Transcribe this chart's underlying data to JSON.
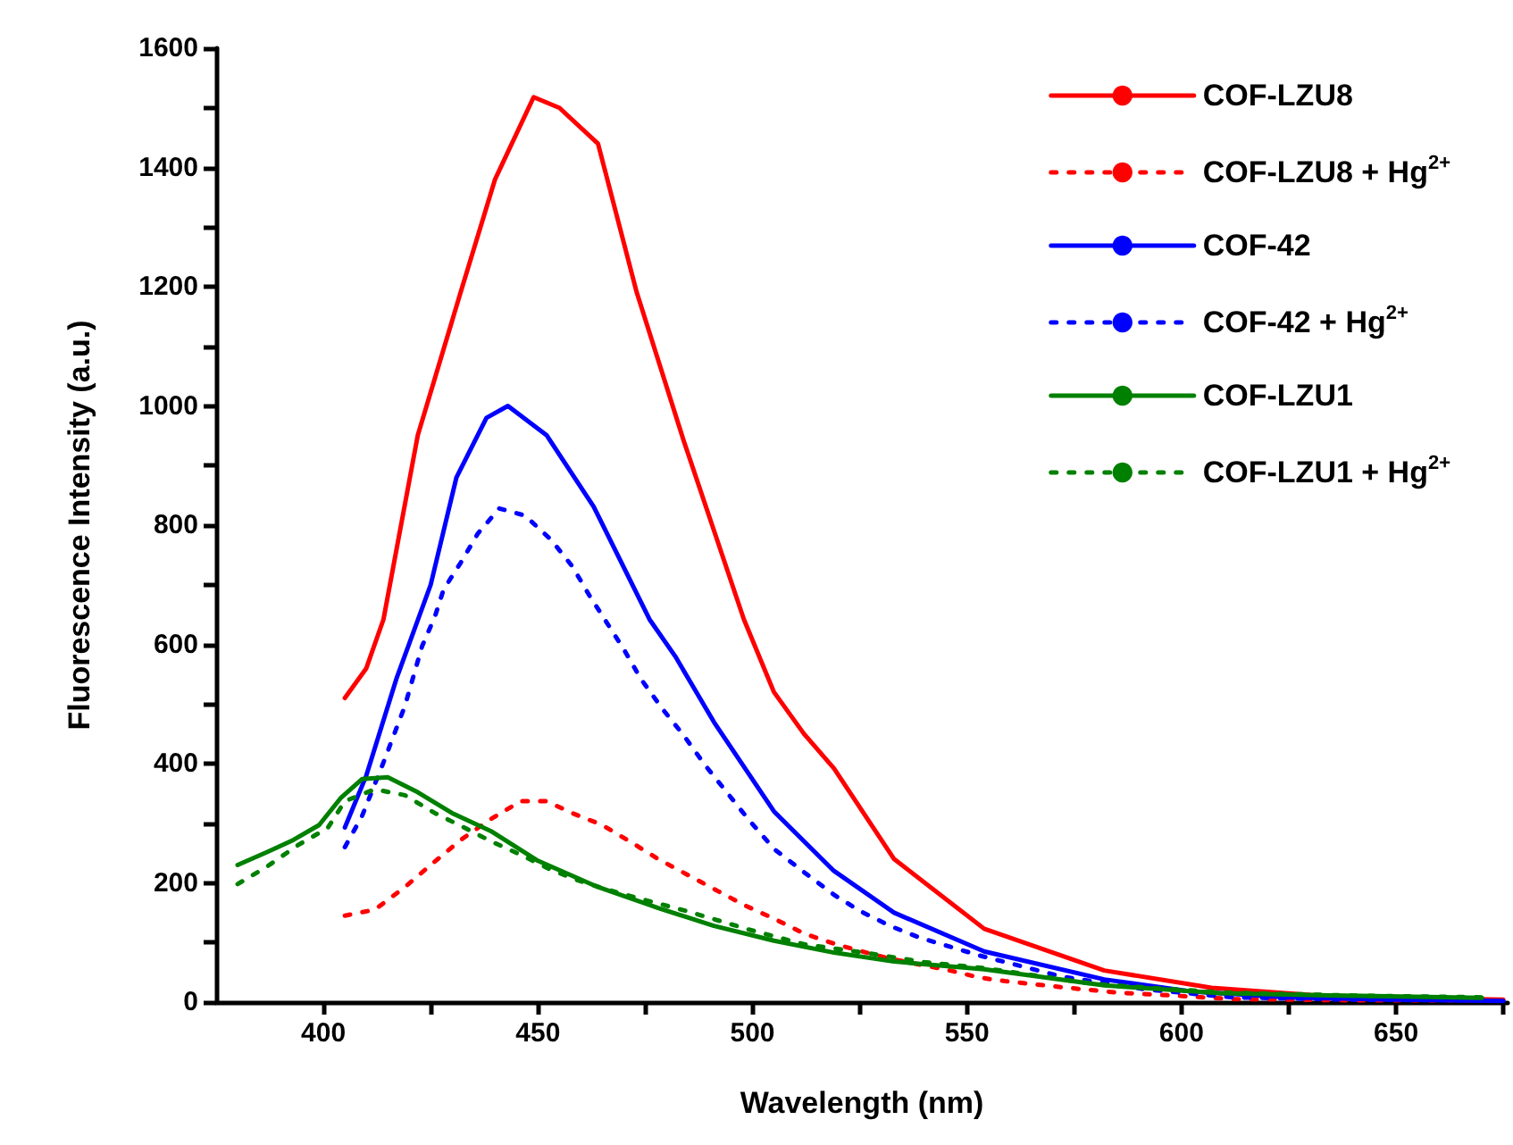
{
  "chart_data": {
    "type": "line",
    "xlabel": "Wavelength (nm)",
    "ylabel": "Fluorescence Intensity (a.u.)",
    "xlim": [
      375,
      676
    ],
    "ylim": [
      0,
      1600
    ],
    "xticks": [
      400,
      {
        "value": 425,
        "label": null
      },
      450,
      {
        "value": 475,
        "label": null
      },
      500,
      {
        "value": 525,
        "label": null
      },
      550,
      {
        "value": 575,
        "label": null
      },
      600,
      {
        "value": 625,
        "label": null
      },
      650,
      {
        "value": 675,
        "label": null
      }
    ],
    "yticks": [
      0,
      {
        "value": 100,
        "label": null
      },
      200,
      {
        "value": 300,
        "label": null
      },
      400,
      {
        "value": 500,
        "label": null
      },
      600,
      {
        "value": 700,
        "label": null
      },
      800,
      {
        "value": 900,
        "label": null
      },
      1000,
      {
        "value": 1100,
        "label": null
      },
      1200,
      {
        "value": 1300,
        "label": null
      },
      1400,
      {
        "value": 1500,
        "label": null
      },
      1600
    ],
    "grid": false,
    "legend": "top right",
    "marker": "none",
    "series": [
      {
        "name": "COF-LZU8",
        "color": "#ff0000",
        "line_style": "solid",
        "x": [
          405,
          410,
          414,
          422,
          432,
          440,
          449,
          455,
          464,
          473,
          484,
          498,
          505,
          512,
          519,
          533,
          554,
          582,
          607,
          630,
          650,
          675
        ],
        "values": [
          510,
          560,
          642,
          951,
          1191,
          1380,
          1518,
          1500,
          1440,
          1191,
          941,
          642,
          520,
          450,
          392,
          240,
          123,
          53,
          24,
          12,
          7,
          4
        ]
      },
      {
        "name": "COF-LZU8 + Hg$^{2+}$",
        "color": "#ff0000",
        "line_style": "dotted",
        "x": [
          405,
          412,
          419,
          425,
          432,
          439,
          446,
          452,
          458,
          465,
          472,
          478,
          485,
          492,
          498,
          505,
          512,
          519,
          525,
          532,
          539,
          546,
          553,
          559,
          572,
          585,
          598,
          612,
          640,
          670
        ],
        "values": [
          145,
          155,
          193,
          230,
          272,
          307,
          337,
          337,
          317,
          297,
          267,
          240,
          213,
          186,
          163,
          140,
          115,
          98,
          86,
          73,
          63,
          53,
          41,
          35,
          25,
          16,
          11,
          5,
          3,
          3
        ]
      },
      {
        "name": "COF-42",
        "color": "#0000ff",
        "line_style": "solid",
        "x": [
          405,
          410,
          417,
          425,
          431,
          438,
          443,
          452,
          463,
          476,
          482,
          491,
          505,
          519,
          533,
          554,
          582,
          602,
          625,
          650,
          675
        ],
        "values": [
          293,
          380,
          542,
          700,
          880,
          980,
          1000,
          951,
          831,
          642,
          580,
          470,
          320,
          220,
          150,
          85,
          38,
          18,
          8,
          4,
          2
        ]
      },
      {
        "name": "COF-42 + Hg$^{2+}$",
        "color": "#0000ff",
        "line_style": "dotted",
        "x": [
          405,
          409,
          414,
          419,
          423,
          426,
          428,
          432,
          436,
          441,
          447,
          453,
          458,
          462,
          466,
          470,
          474,
          479,
          484,
          489,
          494,
          499,
          505,
          512,
          519,
          525,
          532,
          539,
          546,
          553,
          572,
          592,
          612,
          640,
          670
        ],
        "values": [
          260,
          312,
          402,
          497,
          597,
          647,
          692,
          737,
          786,
          828,
          816,
          776,
          731,
          682,
          637,
          592,
          542,
          492,
          447,
          397,
          352,
          307,
          257,
          218,
          180,
          153,
          128,
          108,
          93,
          78,
          43,
          21,
          8,
          4,
          3
        ]
      },
      {
        "name": "COF-LZU1",
        "color": "#008000",
        "line_style": "solid",
        "x": [
          380,
          387,
          393,
          399,
          404,
          409,
          415,
          422,
          430,
          439,
          450,
          464,
          478,
          491,
          505,
          519,
          533,
          554,
          582,
          609,
          637,
          670
        ],
        "values": [
          230,
          252,
          272,
          297,
          342,
          374,
          377,
          352,
          317,
          287,
          237,
          193,
          158,
          128,
          103,
          83,
          68,
          55,
          28,
          15,
          11,
          7
        ]
      },
      {
        "name": "COF-LZU1 + Hg$^{2+}$",
        "color": "#008000",
        "line_style": "dotted",
        "x": [
          380,
          387,
          394,
          401,
          405,
          412,
          419,
          426,
          433,
          439,
          446,
          453,
          459,
          466,
          472,
          485,
          499,
          512,
          527,
          540,
          554,
          580,
          610,
          640,
          670
        ],
        "values": [
          198,
          228,
          263,
          292,
          337,
          357,
          347,
          317,
          292,
          270,
          247,
          222,
          205,
          189,
          177,
          152,
          122,
          97,
          82,
          67,
          57,
          30,
          16,
          11,
          8
        ]
      }
    ]
  }
}
